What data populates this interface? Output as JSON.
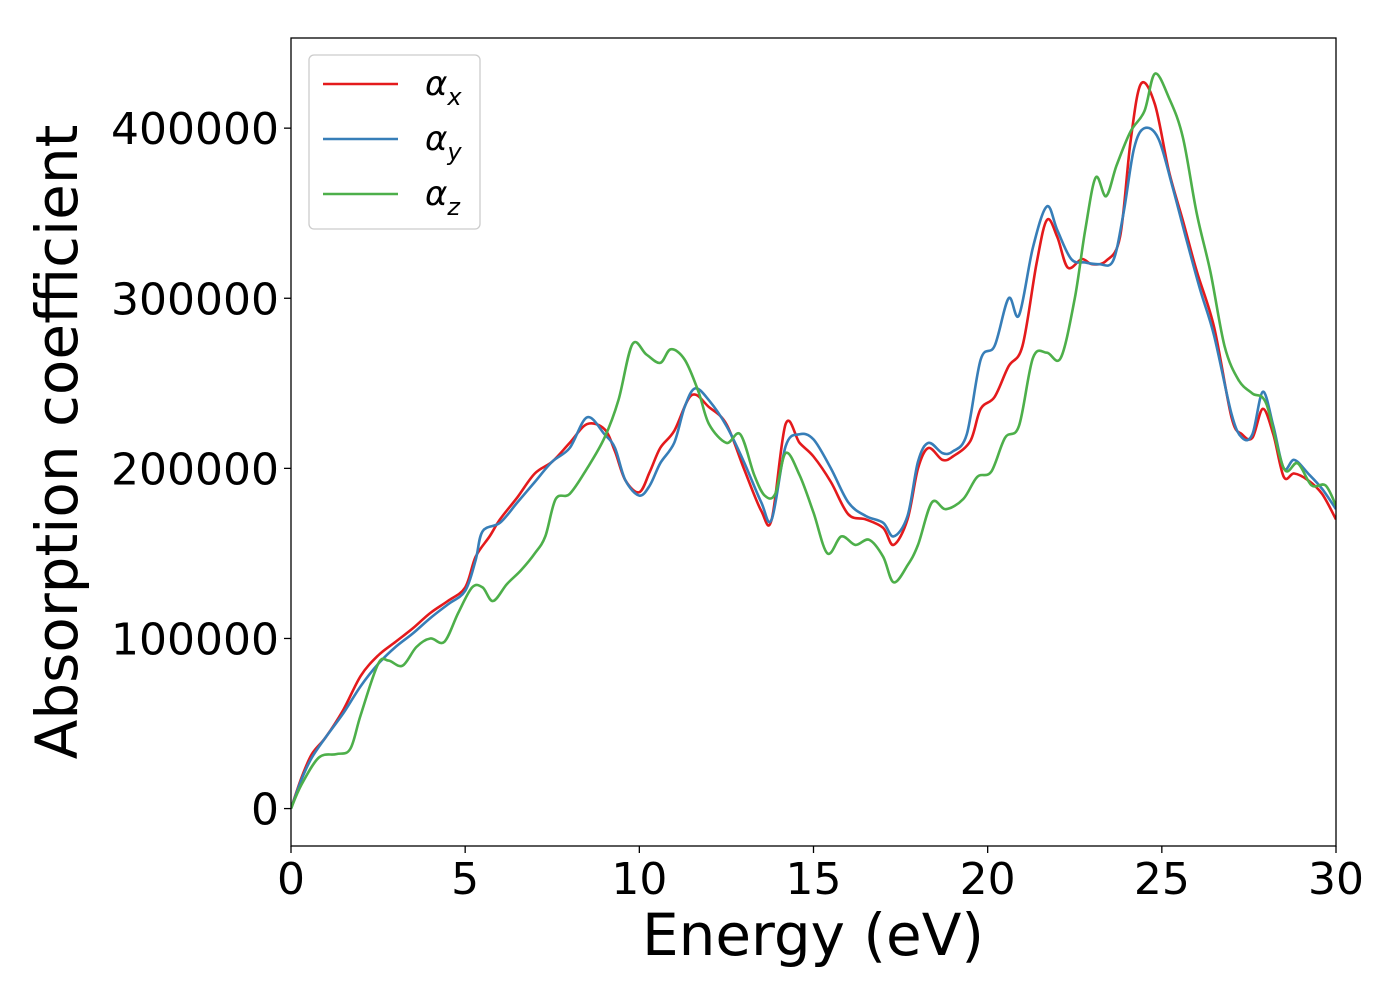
{
  "chart_data": {
    "type": "line",
    "title": "",
    "xlabel": "Energy (eV)",
    "ylabel": "Absorption coefficient",
    "xlim": [
      0,
      30
    ],
    "ylim": [
      -22000,
      453000
    ],
    "x_ticks": [
      "0",
      "5",
      "10",
      "15",
      "20",
      "25",
      "30"
    ],
    "y_ticks": [
      "0",
      "100000",
      "200000",
      "300000",
      "400000"
    ],
    "grid": false,
    "legend_position": "upper-left",
    "series": [
      {
        "name": "α_x",
        "label_main": "α",
        "label_sub": "x",
        "color": "#e41a1c",
        "points": [
          [
            0,
            0
          ],
          [
            0.3,
            18000
          ],
          [
            0.6,
            32000
          ],
          [
            1.0,
            42000
          ],
          [
            1.5,
            58000
          ],
          [
            2.0,
            78000
          ],
          [
            2.5,
            90000
          ],
          [
            3.0,
            98000
          ],
          [
            3.5,
            106000
          ],
          [
            4.0,
            115000
          ],
          [
            4.5,
            122000
          ],
          [
            5.0,
            130000
          ],
          [
            5.3,
            148000
          ],
          [
            5.7,
            160000
          ],
          [
            6.0,
            170000
          ],
          [
            6.5,
            183000
          ],
          [
            7.0,
            197000
          ],
          [
            7.5,
            204000
          ],
          [
            8.0,
            215000
          ],
          [
            8.5,
            226000
          ],
          [
            9.0,
            223000
          ],
          [
            9.3,
            210000
          ],
          [
            9.6,
            193000
          ],
          [
            10.0,
            186000
          ],
          [
            10.3,
            198000
          ],
          [
            10.6,
            212000
          ],
          [
            11.0,
            222000
          ],
          [
            11.5,
            243000
          ],
          [
            12.0,
            236000
          ],
          [
            12.5,
            226000
          ],
          [
            13.0,
            200000
          ],
          [
            13.5,
            175000
          ],
          [
            13.8,
            170000
          ],
          [
            14.2,
            226000
          ],
          [
            14.6,
            215000
          ],
          [
            15.0,
            207000
          ],
          [
            15.5,
            192000
          ],
          [
            16.0,
            173000
          ],
          [
            16.5,
            170000
          ],
          [
            17.0,
            165000
          ],
          [
            17.3,
            155000
          ],
          [
            17.7,
            170000
          ],
          [
            18.0,
            200000
          ],
          [
            18.3,
            212000
          ],
          [
            18.7,
            205000
          ],
          [
            19.0,
            207000
          ],
          [
            19.5,
            216000
          ],
          [
            19.8,
            235000
          ],
          [
            20.2,
            242000
          ],
          [
            20.6,
            260000
          ],
          [
            21.0,
            272000
          ],
          [
            21.4,
            320000
          ],
          [
            21.7,
            346000
          ],
          [
            22.0,
            336000
          ],
          [
            22.3,
            318000
          ],
          [
            22.7,
            323000
          ],
          [
            23.0,
            320000
          ],
          [
            23.4,
            322000
          ],
          [
            23.8,
            336000
          ],
          [
            24.1,
            392000
          ],
          [
            24.4,
            426000
          ],
          [
            24.8,
            414000
          ],
          [
            25.2,
            375000
          ],
          [
            25.6,
            346000
          ],
          [
            26.0,
            316000
          ],
          [
            26.5,
            283000
          ],
          [
            27.0,
            230000
          ],
          [
            27.3,
            220000
          ],
          [
            27.6,
            218000
          ],
          [
            27.9,
            235000
          ],
          [
            28.2,
            220000
          ],
          [
            28.5,
            195000
          ],
          [
            28.8,
            197000
          ],
          [
            29.2,
            193000
          ],
          [
            29.6,
            185000
          ],
          [
            30,
            170000
          ]
        ]
      },
      {
        "name": "α_y",
        "label_main": "α",
        "label_sub": "y",
        "color": "#377eb8",
        "points": [
          [
            0,
            0
          ],
          [
            0.3,
            17000
          ],
          [
            0.6,
            30000
          ],
          [
            1.0,
            42000
          ],
          [
            1.5,
            56000
          ],
          [
            2.0,
            72000
          ],
          [
            2.5,
            85000
          ],
          [
            3.0,
            95000
          ],
          [
            3.5,
            103000
          ],
          [
            4.0,
            112000
          ],
          [
            4.5,
            120000
          ],
          [
            5.0,
            128000
          ],
          [
            5.3,
            146000
          ],
          [
            5.5,
            163000
          ],
          [
            6.0,
            168000
          ],
          [
            6.5,
            180000
          ],
          [
            7.0,
            192000
          ],
          [
            7.5,
            204000
          ],
          [
            8.0,
            212000
          ],
          [
            8.5,
            230000
          ],
          [
            9.0,
            220000
          ],
          [
            9.3,
            212000
          ],
          [
            9.6,
            193000
          ],
          [
            10.0,
            184000
          ],
          [
            10.3,
            190000
          ],
          [
            10.6,
            203000
          ],
          [
            11.0,
            215000
          ],
          [
            11.3,
            236000
          ],
          [
            11.6,
            247000
          ],
          [
            12.0,
            240000
          ],
          [
            12.5,
            225000
          ],
          [
            13.0,
            204000
          ],
          [
            13.5,
            180000
          ],
          [
            13.8,
            170000
          ],
          [
            14.2,
            213000
          ],
          [
            14.6,
            220000
          ],
          [
            15.0,
            217000
          ],
          [
            15.5,
            200000
          ],
          [
            16.0,
            180000
          ],
          [
            16.5,
            172000
          ],
          [
            17.0,
            168000
          ],
          [
            17.3,
            160000
          ],
          [
            17.7,
            172000
          ],
          [
            18.0,
            204000
          ],
          [
            18.3,
            215000
          ],
          [
            18.7,
            209000
          ],
          [
            19.0,
            210000
          ],
          [
            19.4,
            220000
          ],
          [
            19.8,
            264000
          ],
          [
            20.2,
            272000
          ],
          [
            20.6,
            300000
          ],
          [
            20.9,
            290000
          ],
          [
            21.3,
            330000
          ],
          [
            21.7,
            354000
          ],
          [
            22.0,
            340000
          ],
          [
            22.4,
            323000
          ],
          [
            22.8,
            321000
          ],
          [
            23.2,
            320000
          ],
          [
            23.6,
            322000
          ],
          [
            23.9,
            350000
          ],
          [
            24.2,
            388000
          ],
          [
            24.5,
            400000
          ],
          [
            24.9,
            394000
          ],
          [
            25.3,
            366000
          ],
          [
            25.7,
            335000
          ],
          [
            26.1,
            305000
          ],
          [
            26.5,
            278000
          ],
          [
            27.0,
            232000
          ],
          [
            27.3,
            218000
          ],
          [
            27.6,
            220000
          ],
          [
            27.9,
            245000
          ],
          [
            28.2,
            225000
          ],
          [
            28.5,
            200000
          ],
          [
            28.8,
            205000
          ],
          [
            29.2,
            197000
          ],
          [
            29.6,
            188000
          ],
          [
            30,
            176000
          ]
        ]
      },
      {
        "name": "α_z",
        "label_main": "α",
        "label_sub": "z",
        "color": "#4daf4a",
        "points": [
          [
            0,
            0
          ],
          [
            0.3,
            14000
          ],
          [
            0.8,
            30000
          ],
          [
            1.3,
            32000
          ],
          [
            1.7,
            35000
          ],
          [
            2.0,
            55000
          ],
          [
            2.5,
            85000
          ],
          [
            2.8,
            87000
          ],
          [
            3.2,
            84000
          ],
          [
            3.6,
            95000
          ],
          [
            4.0,
            100000
          ],
          [
            4.4,
            98000
          ],
          [
            4.8,
            115000
          ],
          [
            5.2,
            130000
          ],
          [
            5.5,
            130000
          ],
          [
            5.8,
            122000
          ],
          [
            6.2,
            132000
          ],
          [
            6.6,
            140000
          ],
          [
            7.0,
            150000
          ],
          [
            7.3,
            160000
          ],
          [
            7.6,
            182000
          ],
          [
            8.0,
            185000
          ],
          [
            8.5,
            200000
          ],
          [
            9.0,
            218000
          ],
          [
            9.4,
            240000
          ],
          [
            9.8,
            273000
          ],
          [
            10.2,
            267000
          ],
          [
            10.6,
            262000
          ],
          [
            10.9,
            270000
          ],
          [
            11.3,
            264000
          ],
          [
            11.7,
            245000
          ],
          [
            12.0,
            226000
          ],
          [
            12.5,
            215000
          ],
          [
            12.9,
            220000
          ],
          [
            13.3,
            196000
          ],
          [
            13.6,
            184000
          ],
          [
            13.9,
            185000
          ],
          [
            14.2,
            209000
          ],
          [
            14.6,
            196000
          ],
          [
            15.0,
            174000
          ],
          [
            15.4,
            150000
          ],
          [
            15.8,
            160000
          ],
          [
            16.2,
            155000
          ],
          [
            16.6,
            158000
          ],
          [
            17.0,
            148000
          ],
          [
            17.3,
            133000
          ],
          [
            17.7,
            143000
          ],
          [
            18.0,
            155000
          ],
          [
            18.4,
            180000
          ],
          [
            18.8,
            176000
          ],
          [
            19.3,
            182000
          ],
          [
            19.7,
            195000
          ],
          [
            20.1,
            198000
          ],
          [
            20.5,
            218000
          ],
          [
            20.9,
            225000
          ],
          [
            21.3,
            265000
          ],
          [
            21.7,
            268000
          ],
          [
            22.1,
            265000
          ],
          [
            22.5,
            300000
          ],
          [
            22.8,
            340000
          ],
          [
            23.1,
            371000
          ],
          [
            23.4,
            360000
          ],
          [
            23.7,
            378000
          ],
          [
            24.1,
            398000
          ],
          [
            24.5,
            410000
          ],
          [
            24.8,
            432000
          ],
          [
            25.2,
            418000
          ],
          [
            25.6,
            395000
          ],
          [
            26.0,
            350000
          ],
          [
            26.4,
            315000
          ],
          [
            26.8,
            272000
          ],
          [
            27.2,
            252000
          ],
          [
            27.6,
            244000
          ],
          [
            28.0,
            238000
          ],
          [
            28.5,
            200000
          ],
          [
            28.9,
            203000
          ],
          [
            29.3,
            190000
          ],
          [
            29.7,
            190000
          ],
          [
            30,
            178000
          ]
        ]
      }
    ]
  }
}
